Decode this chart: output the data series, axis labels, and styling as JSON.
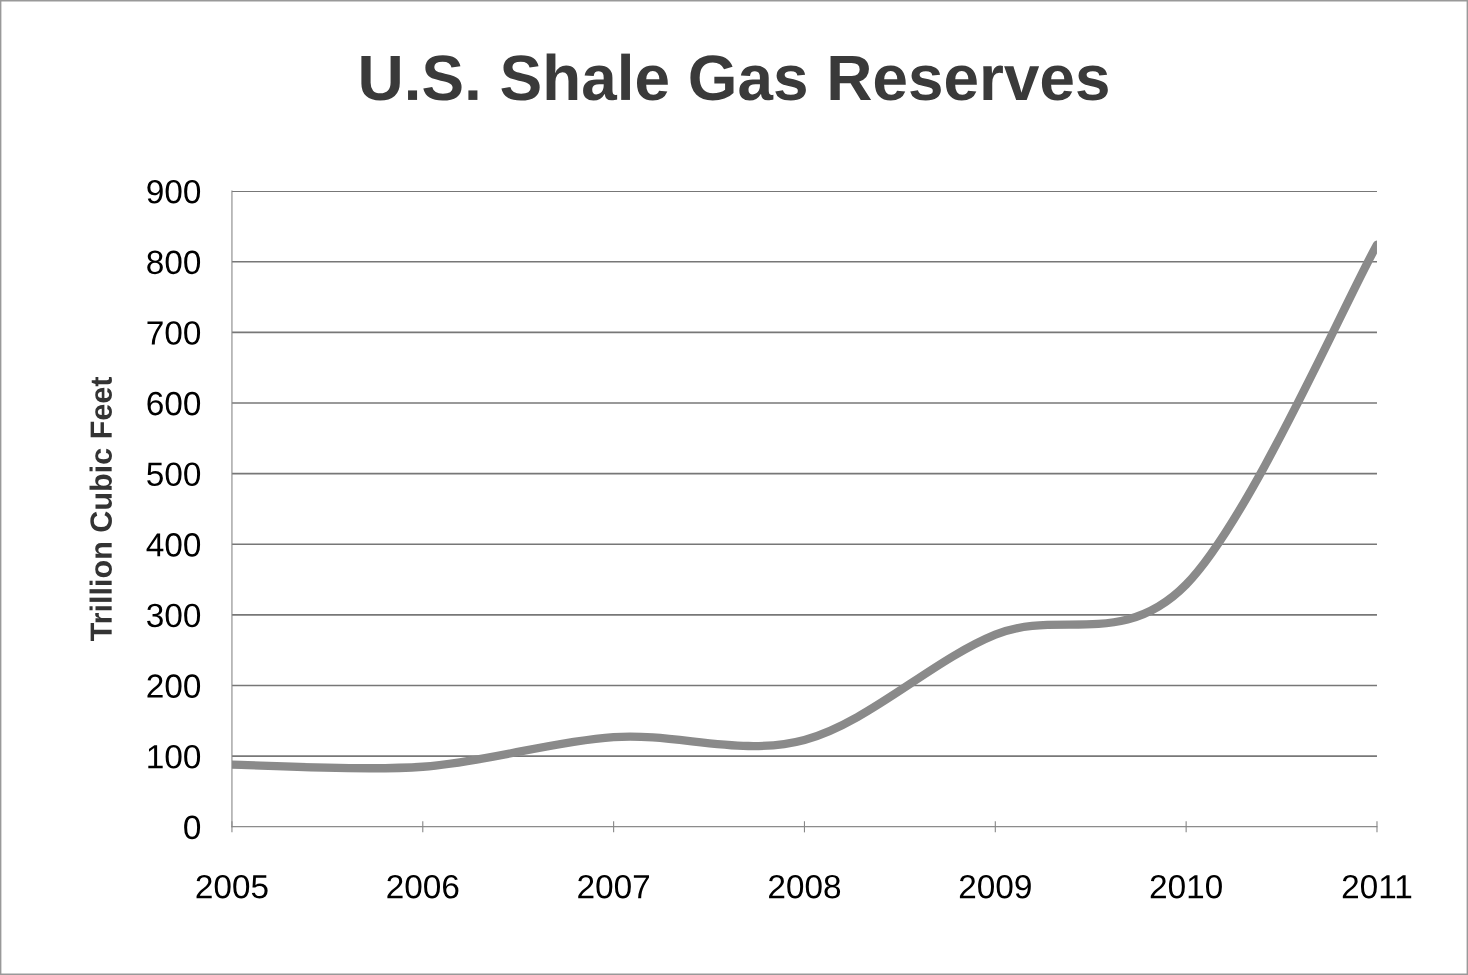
{
  "chart_data": {
    "type": "line",
    "title": "U.S. Shale Gas Reserves",
    "ylabel": "Trillion Cubic Feet",
    "categories": [
      "2005",
      "2006",
      "2007",
      "2008",
      "2009",
      "2010",
      "2011"
    ],
    "series": [
      {
        "color": "#8a8a8a",
        "values": [
          88,
          85,
          127,
          123,
          272,
          343,
          824
        ]
      }
    ],
    "ylim": [
      0,
      900
    ],
    "yticks": [
      0,
      100,
      200,
      300,
      400,
      500,
      600,
      700,
      800,
      900
    ],
    "grid": "y",
    "legend": false,
    "marker": "none",
    "line_style": "solid"
  }
}
